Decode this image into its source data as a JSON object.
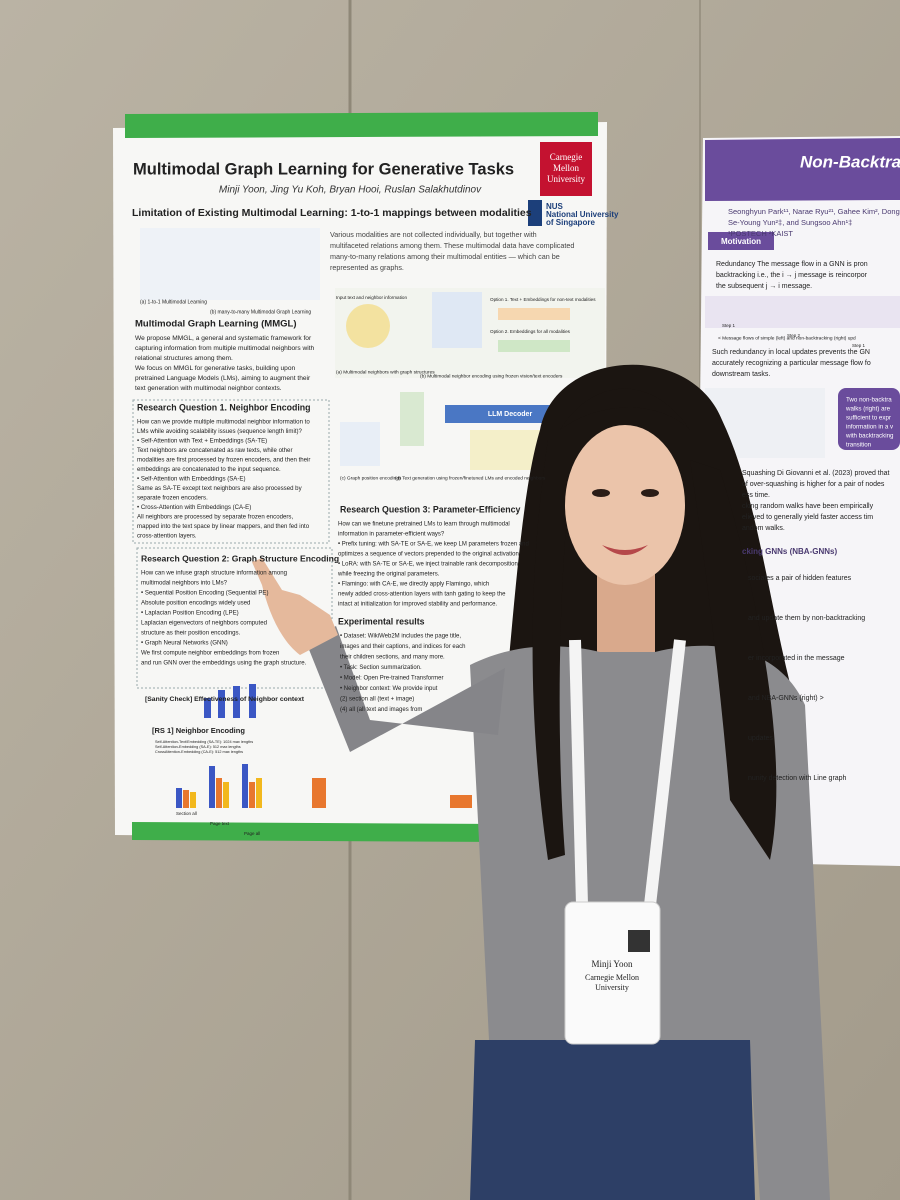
{
  "poster": {
    "title": "Multimodal Graph Learning for Generative Tasks",
    "authors": "Minji Yoon, Jing Yu Koh, Bryan Hooi, Ruslan Salakhutdinov",
    "cmu_logo": [
      "Carnegie",
      "Mellon",
      "University"
    ],
    "nus_logo": [
      "NUS",
      "National University",
      "of Singapore"
    ],
    "limitation": {
      "heading": "Limitation of Existing Multimodal Learning: 1-to-1 mappings between modalities",
      "text": [
        "Various modalities are not collected individually, but together with",
        "multifaceted relations among them. These multimodal data have complicated",
        "many-to-many relations among their multimodal entities — which can be",
        "represented as graphs."
      ],
      "captions": [
        "(a) 1-to-1 Multimodal Learning",
        "(b) many-to-many Multimodal Graph Learning"
      ]
    },
    "mmgl": {
      "heading": "Multimodal Graph Learning (MMGL)",
      "lines": [
        "We propose MMGL, a general and systematic framework for",
        "capturing information from multiple multimodal neighbors with",
        "relational structures among them.",
        "We focus on MMGL for generative tasks, building upon",
        "pretrained Language Models (LMs), aiming to augment their",
        "text generation with multimodal neighbor contexts."
      ]
    },
    "figure": {
      "input_label": "Input text and neighbor information",
      "option1": "Option 1. Text + Embeddings for non-text modalities",
      "option2": "Option 2. Embeddings for all modalities",
      "decoder": "LLM Decoder",
      "captions": [
        "(a) Multimodal neighbors with graph structures",
        "(b) Multimodal neighbor encoding using frozen vision/text encoders",
        "(c) Graph position encodings",
        "(d) Text generation using frozen/finetuned LMs and encoded neighbors"
      ]
    },
    "rq1": {
      "heading": "Research Question 1. Neighbor Encoding",
      "lines": [
        "How can we provide multiple multimodal neighbor information to",
        "LMs while avoiding scalability issues (sequence length limit)?",
        "• Self-Attention with Text + Embeddings (SA-TE)",
        "Text neighbors are concatenated as raw texts, while other",
        "modalities are first processed by frozen encoders, and then their",
        "embeddings are concatenated to the input sequence.",
        "• Self-Attention with Embeddings (SA-E)",
        "Same as SA-TE except text neighbors are also processed by",
        "separate frozen encoders.",
        "• Cross-Attention with Embeddings (CA-E)",
        "All neighbors are processed by separate frozen encoders,",
        "mapped into the text space by linear mappers, and then fed into",
        "cross-attention layers."
      ]
    },
    "rq2": {
      "heading": "Research Question 2: Graph Structure Encoding",
      "lines": [
        "How can we infuse graph structure information among",
        "multimodal neighbors into LMs?",
        "• Sequential Position Encoding (Sequential PE)",
        "Absolute position encodings widely used",
        "• Laplacian Position Encoding (LPE)",
        "Laplacian eigenvectors of neighbors computed",
        "structure as their position encodings.",
        "• Graph Neural Networks (GNN)",
        "We first compute neighbor embeddings from frozen",
        "and run GNN over the embeddings using the graph structure."
      ]
    },
    "sanity": "[Sanity Check] Effectiveness of Neighbor context",
    "rs1": {
      "heading": "[RS 1] Neighbor Encoding",
      "legend": [
        "Self-Attention-Text/Embedding (SA-TE): 1024 max lengths",
        "Self-Attention-Embedding (SA-E): 512 max lengths",
        "CrossAttention-Embedding (CA-E): 512 max lengths"
      ],
      "xlabels": [
        "Section all",
        "Page text",
        "Page all"
      ]
    },
    "rq3": {
      "heading": "Research Question 3: Parameter-Efficiency",
      "lines": [
        "How can we finetune pretrained LMs to learn through multimodal",
        "information in parameter-efficient ways?",
        "• Prefix tuning: with SA-TE or SA-E, we keep LM parameters frozen and",
        "optimizes a sequence of vectors prepended to the original activation",
        "• LoRA: with SA-TE or SA-E, we inject trainable rank decomposition",
        "while freezing the original parameters.",
        "• Flamingo: with CA-E, we directly apply Flamingo, which",
        "newly added cross-attention layers with tanh gating to keep the",
        "intact at initialization for improved stability and performance."
      ]
    },
    "experiments": {
      "heading": "Experimental results",
      "lines": [
        "• Dataset: WikiWeb2M includes the page title,",
        "images and their captions, and indices for each",
        "their children sections, and many more.",
        "• Task: Section summarization.",
        "• Model: Open Pre-trained Transformer",
        "• Neighbor context: We provide input",
        "(2) section all (text + image)",
        "(4) all (all text and images from"
      ]
    }
  },
  "right_poster": {
    "title": "Non-Backtrac",
    "authors": [
      "Seonghyun Park¹¹, Narae Ryu²¹, Gahee Kim², Dong",
      "Se-Young Yun²‡, and Sungsoo Ahn¹‡",
      "¹POSTECH ²KAIST"
    ],
    "motivation": "Motivation",
    "lines": [
      "Redundancy  The message flow in a GNN is pron",
      "backtracking i.e., the i → j message is reincorpor",
      "the subsequent j → i message."
    ],
    "steps": [
      "Step 1",
      "Step 2",
      "Step 1"
    ],
    "caption": "< Message flows of simple (left) and non-backtracking (right) upd",
    "lines2": [
      "Such redundancy in local updates prevents the GN",
      "accurately recognizing a particular message flow fo",
      "downstream tasks."
    ],
    "callout": [
      "Two non-backtra",
      "walks (right) are",
      "sufficient to expr",
      "information in a v",
      "with backtracking",
      "transition"
    ],
    "lines3": [
      "Squashing  Di Giovanni et al. (2023) proved that",
      "of over-squashing is higher for a pair of nodes",
      "ess time.",
      "cking random walks have been empirically",
      "elieved to generally yield faster access tim",
      "andom walks."
    ],
    "section": "cking GNNs (NBA-GNNs)",
    "lines4": [
      "sociates a pair of hidden features",
      "and update them by non-backtracking",
      "er incorporated in the message",
      "and NBA-GNNs (right) >",
      "updates",
      "nunity detection with Line graph"
    ]
  },
  "badge": {
    "name": "Minji Yoon",
    "org": [
      "Carnegie Mellon",
      "University"
    ]
  }
}
